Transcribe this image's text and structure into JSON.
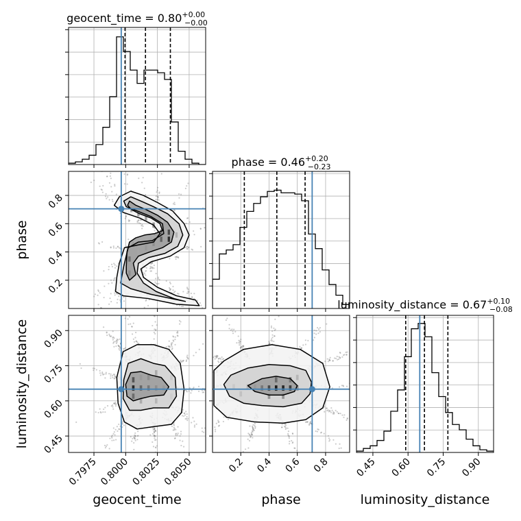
{
  "chart_data": {
    "type": "corner",
    "parameters": [
      {
        "name": "geocent_time",
        "axis_label": "geocent_time",
        "title": {
          "prefix": "geocent_time = ",
          "value": "0.80",
          "plus": "+0.00",
          "minus": "−0.00"
        },
        "range": [
          0.7955,
          0.8063
        ],
        "ticks": [
          0.7975,
          0.8,
          0.8025,
          0.805
        ],
        "tick_labels": [
          "0.7975",
          "0.8000",
          "0.8025",
          "0.8050"
        ],
        "truth": 0.79965,
        "quantiles": [
          0.79995,
          0.80156,
          0.80352
        ],
        "histogram": {
          "edges_start": 0.7955,
          "bin_width": 0.00054,
          "counts": [
            0.01,
            0.02,
            0.04,
            0.07,
            0.15,
            0.28,
            0.51,
            0.96,
            0.85,
            0.71,
            0.61,
            0.71,
            0.71,
            0.69,
            0.64,
            0.32,
            0.1,
            0.04,
            0.01,
            0.0
          ]
        }
      },
      {
        "name": "phase",
        "axis_label": "phase",
        "title": {
          "prefix": "phase = ",
          "value": "0.46",
          "plus": "+0.20",
          "minus": "−0.23"
        },
        "range": [
          0.0,
          0.97
        ],
        "ticks": [
          0.2,
          0.4,
          0.6,
          0.8
        ],
        "tick_labels": [
          "0.2",
          "0.4",
          "0.6",
          "0.8"
        ],
        "truth": 0.705,
        "quantiles": [
          0.225,
          0.455,
          0.655
        ],
        "histogram": {
          "edges_start": 0.0,
          "bin_width": 0.0485,
          "counts": [
            0.22,
            0.41,
            0.44,
            0.48,
            0.61,
            0.73,
            0.79,
            0.84,
            0.88,
            0.89,
            0.87,
            0.87,
            0.86,
            0.81,
            0.56,
            0.45,
            0.29,
            0.18,
            0.1,
            0.03
          ]
        }
      },
      {
        "name": "luminosity_distance",
        "axis_label": "luminosity_distance",
        "title": {
          "prefix": "luminosity_distance = ",
          "value": "0.67",
          "plus": "+0.10",
          "minus": "−0.08"
        },
        "range": [
          0.38,
          0.965
        ],
        "ticks": [
          0.45,
          0.6,
          0.75,
          0.9
        ],
        "tick_labels": [
          "0.45",
          "0.60",
          "0.75",
          "0.90"
        ],
        "truth": 0.65,
        "quantiles": [
          0.59,
          0.67,
          0.77
        ],
        "histogram": {
          "edges_start": 0.38,
          "bin_width": 0.02925,
          "counts": [
            0.01,
            0.03,
            0.05,
            0.09,
            0.16,
            0.31,
            0.47,
            0.72,
            0.93,
            0.97,
            0.87,
            0.6,
            0.42,
            0.3,
            0.21,
            0.17,
            0.1,
            0.05,
            0.02,
            0.01
          ]
        }
      }
    ],
    "pairs": [
      {
        "x": "geocent_time",
        "y": "phase",
        "contour_levels": [
          [
            [
              0.80005,
              0.3
            ],
            [
              0.8001,
              0.4
            ],
            [
              0.8003,
              0.47
            ],
            [
              0.8008,
              0.5
            ],
            [
              0.8015,
              0.52
            ],
            [
              0.8023,
              0.53
            ],
            [
              0.8029,
              0.55
            ],
            [
              0.8027,
              0.6
            ],
            [
              0.802,
              0.64
            ],
            [
              0.8011,
              0.67
            ],
            [
              0.80045,
              0.7
            ],
            [
              0.80015,
              0.73
            ],
            [
              0.8003,
              0.76
            ],
            [
              0.8008,
              0.73
            ],
            [
              0.8016,
              0.7
            ],
            [
              0.8025,
              0.66
            ],
            [
              0.8033,
              0.61
            ],
            [
              0.8038,
              0.54
            ],
            [
              0.8036,
              0.47
            ],
            [
              0.8029,
              0.43
            ],
            [
              0.8019,
              0.4
            ],
            [
              0.801,
              0.37
            ],
            [
              0.8006,
              0.32
            ],
            [
              0.8008,
              0.24
            ],
            [
              0.8003,
              0.2
            ],
            [
              0.80005,
              0.25
            ]
          ],
          [
            [
              0.7996,
              0.18
            ],
            [
              0.79985,
              0.3
            ],
            [
              0.8002,
              0.43
            ],
            [
              0.801,
              0.47
            ],
            [
              0.8021,
              0.48
            ],
            [
              0.803,
              0.53
            ],
            [
              0.8029,
              0.6
            ],
            [
              0.802,
              0.65
            ],
            [
              0.8009,
              0.69
            ],
            [
              0.80005,
              0.72
            ],
            [
              0.79985,
              0.76
            ],
            [
              0.8004,
              0.79
            ],
            [
              0.8012,
              0.76
            ],
            [
              0.8022,
              0.72
            ],
            [
              0.8033,
              0.67
            ],
            [
              0.8042,
              0.6
            ],
            [
              0.8045,
              0.52
            ],
            [
              0.8041,
              0.44
            ],
            [
              0.8031,
              0.39
            ],
            [
              0.8018,
              0.36
            ],
            [
              0.801,
              0.32
            ],
            [
              0.8009,
              0.25
            ],
            [
              0.8014,
              0.18
            ],
            [
              0.8024,
              0.12
            ],
            [
              0.8038,
              0.07
            ],
            [
              0.8047,
              0.05
            ],
            [
              0.8036,
              0.07
            ],
            [
              0.802,
              0.1
            ],
            [
              0.8004,
              0.14
            ]
          ],
          [
            [
              0.7992,
              0.12
            ],
            [
              0.7993,
              0.22
            ],
            [
              0.7995,
              0.32
            ],
            [
              0.7999,
              0.43
            ],
            [
              0.801,
              0.45
            ],
            [
              0.8022,
              0.47
            ],
            [
              0.8027,
              0.53
            ],
            [
              0.8022,
              0.59
            ],
            [
              0.8011,
              0.64
            ],
            [
              0.7998,
              0.68
            ],
            [
              0.7991,
              0.73
            ],
            [
              0.7995,
              0.79
            ],
            [
              0.8004,
              0.83
            ],
            [
              0.8014,
              0.8
            ],
            [
              0.8025,
              0.75
            ],
            [
              0.8037,
              0.69
            ],
            [
              0.8046,
              0.6
            ],
            [
              0.805,
              0.52
            ],
            [
              0.8046,
              0.43
            ],
            [
              0.8035,
              0.37
            ],
            [
              0.802,
              0.33
            ],
            [
              0.8012,
              0.28
            ],
            [
              0.8014,
              0.22
            ],
            [
              0.8025,
              0.15
            ],
            [
              0.804,
              0.09
            ],
            [
              0.8055,
              0.06
            ],
            [
              0.8058,
              0.02
            ],
            [
              0.804,
              0.03
            ],
            [
              0.8018,
              0.07
            ],
            [
              0.7998,
              0.09
            ]
          ]
        ],
        "density_blocks": [
          [
            0.8034,
            0.49,
            0.5,
            0.87
          ],
          [
            0.8034,
            0.54,
            0.5,
            0.75
          ],
          [
            0.8028,
            0.49,
            0.5,
            0.64
          ],
          [
            0.8028,
            0.54,
            0.5,
            0.55
          ],
          [
            0.8022,
            0.46,
            0.5,
            0.45
          ],
          [
            0.8022,
            0.59,
            0.5,
            0.5
          ],
          [
            0.8016,
            0.64,
            0.5,
            0.42
          ],
          [
            0.801,
            0.67,
            0.5,
            0.4
          ],
          [
            0.80045,
            0.7,
            0.5,
            0.36
          ],
          [
            0.8003,
            0.35,
            0.5,
            0.58
          ],
          [
            0.8003,
            0.25,
            0.5,
            0.45
          ],
          [
            0.801,
            0.4,
            0.5,
            0.35
          ],
          [
            0.8016,
            0.43,
            0.5,
            0.4
          ],
          [
            0.804,
            0.52,
            0.5,
            0.32
          ],
          [
            0.8029,
            0.62,
            0.5,
            0.3
          ]
        ],
        "truth_point": [
          0.79965,
          0.705
        ]
      },
      {
        "x": "geocent_time",
        "y": "luminosity_distance",
        "contour_levels": [
          [
            [
              0.8,
              0.67
            ],
            [
              0.8001,
              0.62
            ],
            [
              0.8006,
              0.6
            ],
            [
              0.8012,
              0.61
            ],
            [
              0.802,
              0.62
            ],
            [
              0.803,
              0.625
            ],
            [
              0.8034,
              0.66
            ],
            [
              0.8028,
              0.7
            ],
            [
              0.802,
              0.71
            ],
            [
              0.8012,
              0.725
            ],
            [
              0.8004,
              0.72
            ]
          ],
          [
            [
              0.79985,
              0.69
            ],
            [
              0.7998,
              0.61
            ],
            [
              0.8003,
              0.56
            ],
            [
              0.8012,
              0.56
            ],
            [
              0.8022,
              0.57
            ],
            [
              0.8034,
              0.57
            ],
            [
              0.804,
              0.62
            ],
            [
              0.8039,
              0.7
            ],
            [
              0.8031,
              0.75
            ],
            [
              0.8022,
              0.76
            ],
            [
              0.8012,
              0.78
            ],
            [
              0.8002,
              0.76
            ]
          ],
          [
            [
              0.7993,
              0.7
            ],
            [
              0.7994,
              0.59
            ],
            [
              0.7999,
              0.51
            ],
            [
              0.8009,
              0.48
            ],
            [
              0.8022,
              0.49
            ],
            [
              0.8036,
              0.5
            ],
            [
              0.8044,
              0.55
            ],
            [
              0.8046,
              0.65
            ],
            [
              0.8043,
              0.76
            ],
            [
              0.8034,
              0.82
            ],
            [
              0.8022,
              0.84
            ],
            [
              0.8009,
              0.84
            ],
            [
              0.7998,
              0.81
            ]
          ]
        ],
        "density_blocks": [
          [
            0.8006,
            0.655,
            0.54,
            0.9
          ],
          [
            0.8006,
            0.69,
            0.54,
            0.7
          ],
          [
            0.8006,
            0.62,
            0.54,
            0.6
          ],
          [
            0.8012,
            0.655,
            0.54,
            0.62
          ],
          [
            0.8018,
            0.655,
            0.54,
            0.55
          ],
          [
            0.8024,
            0.655,
            0.54,
            0.45
          ],
          [
            0.803,
            0.655,
            0.54,
            0.4
          ],
          [
            0.8012,
            0.7,
            0.54,
            0.4
          ],
          [
            0.8018,
            0.7,
            0.54,
            0.45
          ],
          [
            0.8024,
            0.72,
            0.54,
            0.35
          ],
          [
            0.8012,
            0.6,
            0.54,
            0.35
          ],
          [
            0.8024,
            0.6,
            0.54,
            0.3
          ],
          [
            0.8036,
            0.62,
            0.54,
            0.2
          ],
          [
            0.8036,
            0.7,
            0.54,
            0.22
          ]
        ],
        "truth_point": [
          0.79965,
          0.65
        ]
      },
      {
        "x": "phase",
        "y": "luminosity_distance",
        "contour_levels": [
          [
            [
              0.25,
              0.665
            ],
            [
              0.3,
              0.64
            ],
            [
              0.4,
              0.625
            ],
            [
              0.5,
              0.625
            ],
            [
              0.58,
              0.64
            ],
            [
              0.6,
              0.665
            ],
            [
              0.55,
              0.695
            ],
            [
              0.45,
              0.705
            ],
            [
              0.35,
              0.695
            ]
          ],
          [
            [
              0.08,
              0.67
            ],
            [
              0.12,
              0.62
            ],
            [
              0.22,
              0.59
            ],
            [
              0.35,
              0.58
            ],
            [
              0.5,
              0.575
            ],
            [
              0.63,
              0.59
            ],
            [
              0.69,
              0.63
            ],
            [
              0.7,
              0.68
            ],
            [
              0.66,
              0.73
            ],
            [
              0.55,
              0.75
            ],
            [
              0.4,
              0.755
            ],
            [
              0.25,
              0.74
            ],
            [
              0.13,
              0.71
            ]
          ],
          [
            [
              0.01,
              0.66
            ],
            [
              0.01,
              0.58
            ],
            [
              0.1,
              0.53
            ],
            [
              0.3,
              0.51
            ],
            [
              0.5,
              0.505
            ],
            [
              0.66,
              0.52
            ],
            [
              0.78,
              0.57
            ],
            [
              0.83,
              0.66
            ],
            [
              0.78,
              0.76
            ],
            [
              0.62,
              0.82
            ],
            [
              0.42,
              0.84
            ],
            [
              0.22,
              0.82
            ],
            [
              0.08,
              0.77
            ],
            [
              0.01,
              0.73
            ]
          ]
        ],
        "density_blocks": [
          [
            0.45,
            0.655,
            1.0,
            0.95
          ],
          [
            0.5,
            0.655,
            1.0,
            0.9
          ],
          [
            0.55,
            0.655,
            1.0,
            0.8
          ],
          [
            0.4,
            0.655,
            1.0,
            0.75
          ],
          [
            0.35,
            0.655,
            1.0,
            0.55
          ],
          [
            0.45,
            0.69,
            1.0,
            0.6
          ],
          [
            0.55,
            0.69,
            1.0,
            0.55
          ],
          [
            0.6,
            0.655,
            1.0,
            0.45
          ],
          [
            0.3,
            0.66,
            1.0,
            0.4
          ],
          [
            0.25,
            0.66,
            1.0,
            0.3
          ],
          [
            0.4,
            0.62,
            1.0,
            0.45
          ],
          [
            0.5,
            0.62,
            1.0,
            0.45
          ],
          [
            0.2,
            0.63,
            1.0,
            0.25
          ],
          [
            0.6,
            0.7,
            1.0,
            0.3
          ],
          [
            0.15,
            0.66,
            1.0,
            0.22
          ]
        ],
        "truth_point": [
          0.705,
          0.65
        ]
      }
    ],
    "colors": {
      "truth": "#4682b4",
      "line": "#000000",
      "grid": "#b0b0b0",
      "scatter": "#6e6e6e"
    }
  }
}
